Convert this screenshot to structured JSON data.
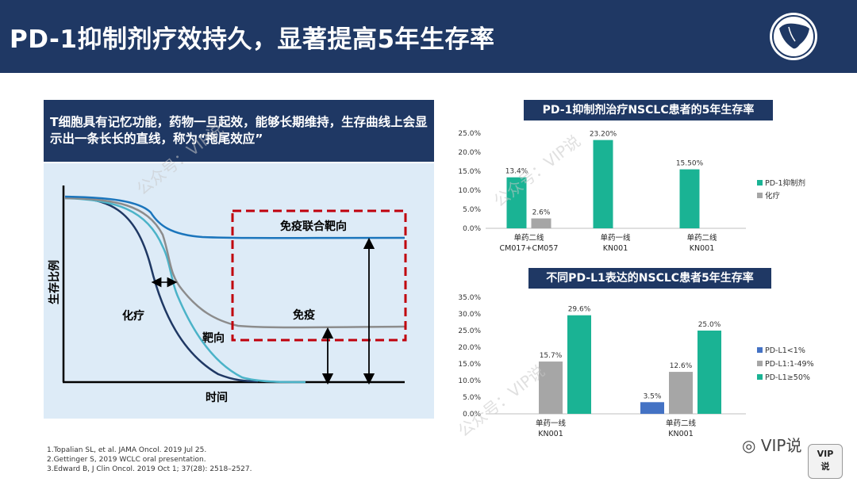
{
  "header": {
    "title": "PD-1抑制剂疗效持久，显著提高5年生存率"
  },
  "banner": {
    "text": "T细胞具有记忆功能，药物一旦起效，能够长期维持，生存曲线上会显示出一条长长的直线，称为“拖尾效应”"
  },
  "survival": {
    "ylabel": "生存比例",
    "xlabel": "时间",
    "box_label": "免疫联合靶向",
    "label_chemo": "化疗",
    "label_targeted": "靶向",
    "label_immuno": "免疫",
    "colors": {
      "combo": "#1b75bc",
      "immuno": "#8c8c8c",
      "targeted": "#4bb3c8",
      "chemo": "#1f3864",
      "box": "#c0000c"
    }
  },
  "references": [
    "1.Topalian SL, et al. JAMA Oncol. 2019 Jul 25.",
    "2.Gettinger S, 2019 WCLC oral presentation.",
    "3.Edward B, J Clin Oncol. 2019 Oct 1; 37(28): 2518–2527."
  ],
  "chart_data": [
    {
      "type": "bar",
      "title": "PD-1抑制剂治疗NSCLC患者的5年生存率",
      "categories": [
        "单药二线|CM017+CM057",
        "单药一线|KN001",
        "单药二线|KN001"
      ],
      "ylim": [
        0,
        25
      ],
      "yticks": [
        "0.0%",
        "5.0%",
        "10.0%",
        "15.0%",
        "20.0%",
        "25.0%"
      ],
      "series": [
        {
          "name": "PD-1抑制剂",
          "color": "#1ab394",
          "values": [
            13.4,
            23.2,
            15.5
          ],
          "labels": [
            "13.4%",
            "23.20%",
            "15.50%"
          ]
        },
        {
          "name": "化疗",
          "color": "#a6a6a6",
          "values": [
            2.6,
            null,
            null
          ],
          "labels": [
            "2.6%",
            "",
            ""
          ]
        }
      ],
      "legend": "right"
    },
    {
      "type": "bar",
      "title": "不同PD-L1表达的NSCLC患者5年生存率",
      "categories": [
        "单药一线|KN001",
        "单药二线|KN001"
      ],
      "ylim": [
        0,
        35
      ],
      "yticks": [
        "0.0%",
        "5.0%",
        "10.0%",
        "15.0%",
        "20.0%",
        "25.0%",
        "30.0%",
        "35.0%"
      ],
      "series": [
        {
          "name": "PD-L1<1%",
          "color": "#4472c4",
          "values": [
            null,
            3.5
          ],
          "labels": [
            "",
            "3.5%"
          ]
        },
        {
          "name": "PD-L1:1-49%",
          "color": "#a6a6a6",
          "values": [
            15.7,
            12.6
          ],
          "labels": [
            "15.7%",
            "12.6%"
          ]
        },
        {
          "name": "PD-L1≥50%",
          "color": "#1ab394",
          "values": [
            29.6,
            25.0
          ],
          "labels": [
            "29.6%",
            "25.0%"
          ]
        }
      ],
      "legend": "right"
    }
  ],
  "watermark": {
    "text": "公众号：VIP说",
    "wechat": "VIP说",
    "badge_line1": "VIP",
    "badge_line2": "说"
  }
}
